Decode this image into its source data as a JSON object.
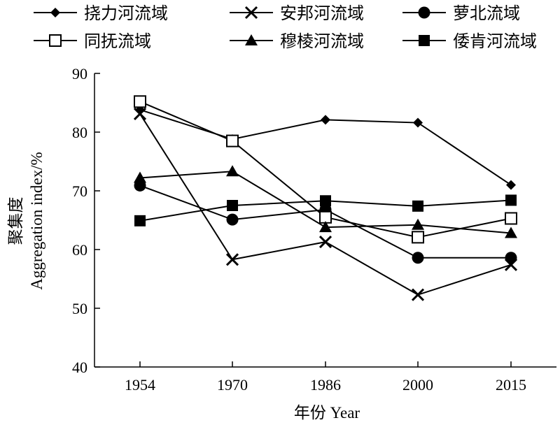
{
  "chart_data": {
    "type": "line",
    "x": [
      "1954",
      "1970",
      "1986",
      "2000",
      "2015"
    ],
    "xlabel": "年份 Year",
    "ylabel_line1": "聚集度",
    "ylabel_line2": "Aggregation index/%",
    "ylim": [
      40,
      90
    ],
    "yticks": [
      40,
      50,
      60,
      70,
      80,
      90
    ],
    "grid": false,
    "legend_position": "top",
    "series": [
      {
        "name": "挠力河流域",
        "marker": "diamond",
        "values": [
          83.8,
          78.8,
          82.1,
          81.6,
          71.0
        ]
      },
      {
        "name": "安邦河流域",
        "marker": "x",
        "values": [
          83.1,
          58.3,
          61.3,
          52.3,
          57.4
        ]
      },
      {
        "name": "萝北流域",
        "marker": "circle",
        "values": [
          70.9,
          65.1,
          66.8,
          58.6,
          58.6
        ]
      },
      {
        "name": "同抚流域",
        "marker": "square-open",
        "values": [
          85.2,
          78.5,
          65.5,
          62.1,
          65.3
        ]
      },
      {
        "name": "穆棱河流域",
        "marker": "triangle",
        "values": [
          72.2,
          73.3,
          63.8,
          64.2,
          62.8
        ]
      },
      {
        "name": "倭肯河流域",
        "marker": "square",
        "values": [
          64.9,
          67.5,
          68.3,
          67.4,
          68.4
        ]
      }
    ]
  }
}
